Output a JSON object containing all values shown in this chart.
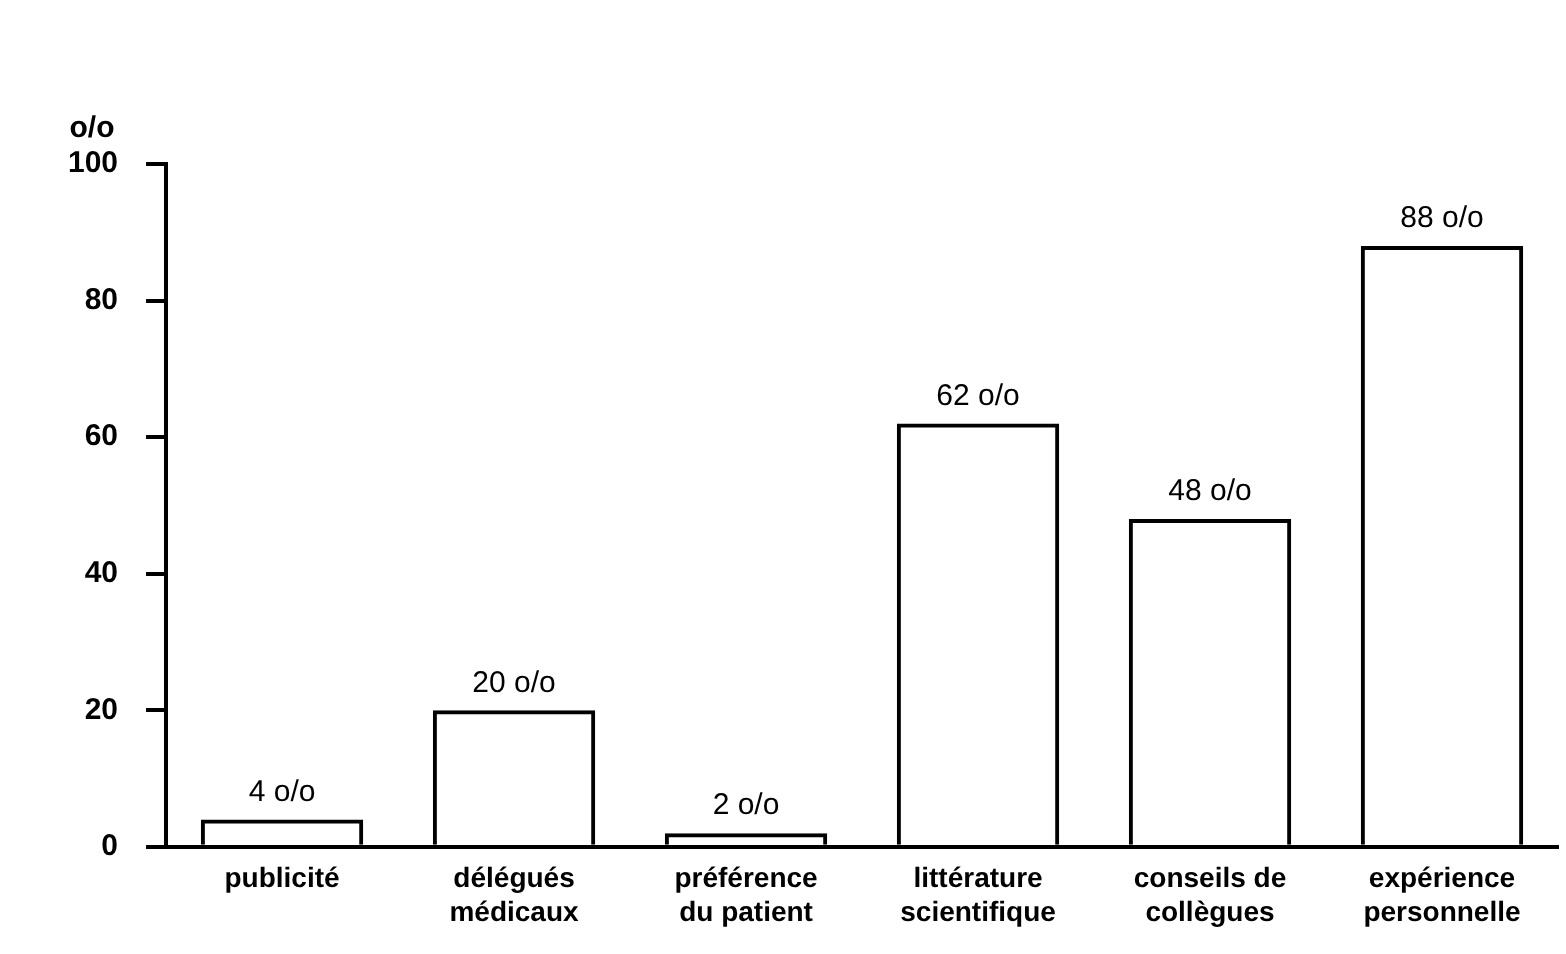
{
  "chart_data": {
    "type": "bar",
    "ylabel": "o/o",
    "categories": [
      "publicité",
      "délégués médicaux",
      "préférence du patient",
      "littérature scientifique",
      "conseils de collègues",
      "expérience personnelle"
    ],
    "values": [
      4,
      20,
      2,
      62,
      48,
      88
    ],
    "value_labels": [
      "4 o/o",
      "20 o/o",
      "2 o/o",
      "62 o/o",
      "48 o/o",
      "88 o/o"
    ],
    "color": "#000000",
    "ylim": [
      0,
      100
    ],
    "yticks": [
      0,
      20,
      40,
      60,
      80,
      100
    ],
    "grid": false,
    "legend": false
  }
}
